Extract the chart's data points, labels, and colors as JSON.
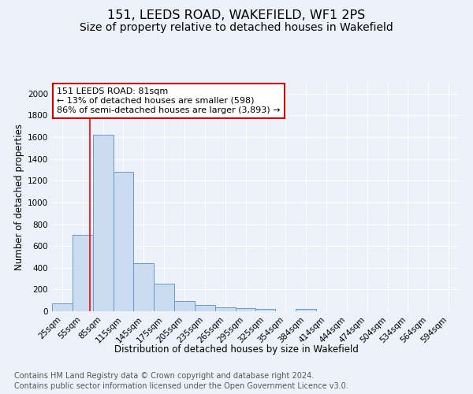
{
  "title": "151, LEEDS ROAD, WAKEFIELD, WF1 2PS",
  "subtitle": "Size of property relative to detached houses in Wakefield",
  "xlabel": "Distribution of detached houses by size in Wakefield",
  "ylabel": "Number of detached properties",
  "footnote1": "Contains HM Land Registry data © Crown copyright and database right 2024.",
  "footnote2": "Contains public sector information licensed under the Open Government Licence v3.0.",
  "annotation_title": "151 LEEDS ROAD: 81sqm",
  "annotation_line1": "← 13% of detached houses are smaller (598)",
  "annotation_line2": "86% of semi-detached houses are larger (3,893) →",
  "bar_color": "#ccdcf0",
  "bar_edge_color": "#6699cc",
  "red_line_x": 81,
  "bins": [
    25,
    55,
    85,
    115,
    145,
    175,
    205,
    235,
    265,
    295,
    325,
    354,
    384,
    414,
    444,
    474,
    504,
    534,
    564,
    594,
    624
  ],
  "values": [
    70,
    700,
    1620,
    1285,
    440,
    255,
    95,
    55,
    35,
    30,
    20,
    0,
    20,
    0,
    0,
    0,
    0,
    0,
    0,
    0
  ],
  "ylim": [
    0,
    2100
  ],
  "yticks": [
    0,
    200,
    400,
    600,
    800,
    1000,
    1200,
    1400,
    1600,
    1800,
    2000
  ],
  "background_color": "#edf2fa",
  "grid_color": "#ffffff",
  "title_fontsize": 11.5,
  "subtitle_fontsize": 10,
  "axis_label_fontsize": 8.5,
  "tick_fontsize": 7.5,
  "footnote_fontsize": 7
}
